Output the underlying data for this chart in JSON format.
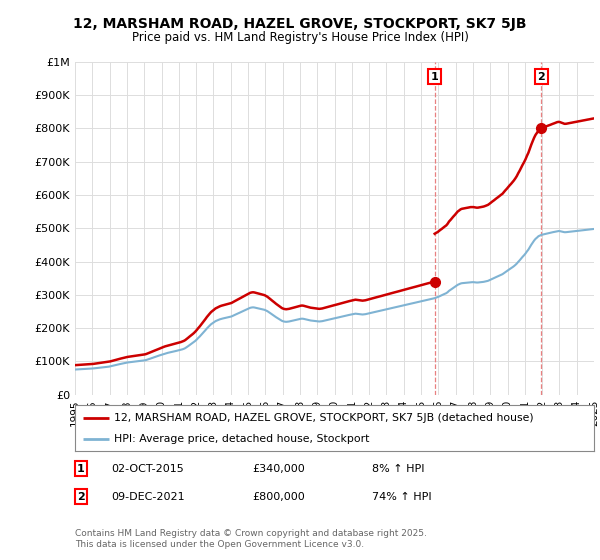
{
  "title": "12, MARSHAM ROAD, HAZEL GROVE, STOCKPORT, SK7 5JB",
  "subtitle": "Price paid vs. HM Land Registry's House Price Index (HPI)",
  "legend_label1": "12, MARSHAM ROAD, HAZEL GROVE, STOCKPORT, SK7 5JB (detached house)",
  "legend_label2": "HPI: Average price, detached house, Stockport",
  "annotation1_date": "02-OCT-2015",
  "annotation1_price": "£340,000",
  "annotation1_hpi": "8% ↑ HPI",
  "annotation2_date": "09-DEC-2021",
  "annotation2_price": "£800,000",
  "annotation2_hpi": "74% ↑ HPI",
  "footer": "Contains HM Land Registry data © Crown copyright and database right 2025.\nThis data is licensed under the Open Government Licence v3.0.",
  "line1_color": "#cc0000",
  "line2_color": "#7fb3d3",
  "vline_color": "#e88080",
  "background_color": "#ffffff",
  "grid_color": "#dddddd",
  "ylim": [
    0,
    1000000
  ],
  "yticks": [
    0,
    100000,
    200000,
    300000,
    400000,
    500000,
    600000,
    700000,
    800000,
    900000,
    1000000
  ],
  "ytick_labels": [
    "£0",
    "£100K",
    "£200K",
    "£300K",
    "£400K",
    "£500K",
    "£600K",
    "£700K",
    "£800K",
    "£900K",
    "£1M"
  ],
  "hpi_years": [
    1995.04,
    1995.12,
    1995.21,
    1995.29,
    1995.37,
    1995.46,
    1995.54,
    1995.62,
    1995.71,
    1995.79,
    1995.87,
    1995.96,
    1996.04,
    1996.12,
    1996.21,
    1996.29,
    1996.37,
    1996.46,
    1996.54,
    1996.62,
    1996.71,
    1996.79,
    1996.87,
    1996.96,
    1997.04,
    1997.12,
    1997.21,
    1997.29,
    1997.37,
    1997.46,
    1997.54,
    1997.62,
    1997.71,
    1997.79,
    1997.87,
    1997.96,
    1998.04,
    1998.12,
    1998.21,
    1998.29,
    1998.37,
    1998.46,
    1998.54,
    1998.62,
    1998.71,
    1998.79,
    1998.87,
    1998.96,
    1999.04,
    1999.12,
    1999.21,
    1999.29,
    1999.37,
    1999.46,
    1999.54,
    1999.62,
    1999.71,
    1999.79,
    1999.87,
    1999.96,
    2000.04,
    2000.12,
    2000.21,
    2000.29,
    2000.37,
    2000.46,
    2000.54,
    2000.62,
    2000.71,
    2000.79,
    2000.87,
    2000.96,
    2001.04,
    2001.12,
    2001.21,
    2001.29,
    2001.37,
    2001.46,
    2001.54,
    2001.62,
    2001.71,
    2001.79,
    2001.87,
    2001.96,
    2002.04,
    2002.12,
    2002.21,
    2002.29,
    2002.37,
    2002.46,
    2002.54,
    2002.62,
    2002.71,
    2002.79,
    2002.87,
    2002.96,
    2003.04,
    2003.12,
    2003.21,
    2003.29,
    2003.37,
    2003.46,
    2003.54,
    2003.62,
    2003.71,
    2003.79,
    2003.87,
    2003.96,
    2004.04,
    2004.12,
    2004.21,
    2004.29,
    2004.37,
    2004.46,
    2004.54,
    2004.62,
    2004.71,
    2004.79,
    2004.87,
    2004.96,
    2005.04,
    2005.12,
    2005.21,
    2005.29,
    2005.37,
    2005.46,
    2005.54,
    2005.62,
    2005.71,
    2005.79,
    2005.87,
    2005.96,
    2006.04,
    2006.12,
    2006.21,
    2006.29,
    2006.37,
    2006.46,
    2006.54,
    2006.62,
    2006.71,
    2006.79,
    2006.87,
    2006.96,
    2007.04,
    2007.12,
    2007.21,
    2007.29,
    2007.37,
    2007.46,
    2007.54,
    2007.62,
    2007.71,
    2007.79,
    2007.87,
    2007.96,
    2008.04,
    2008.12,
    2008.21,
    2008.29,
    2008.37,
    2008.46,
    2008.54,
    2008.62,
    2008.71,
    2008.79,
    2008.87,
    2008.96,
    2009.04,
    2009.12,
    2009.21,
    2009.29,
    2009.37,
    2009.46,
    2009.54,
    2009.62,
    2009.71,
    2009.79,
    2009.87,
    2009.96,
    2010.04,
    2010.12,
    2010.21,
    2010.29,
    2010.37,
    2010.46,
    2010.54,
    2010.62,
    2010.71,
    2010.79,
    2010.87,
    2010.96,
    2011.04,
    2011.12,
    2011.21,
    2011.29,
    2011.37,
    2011.46,
    2011.54,
    2011.62,
    2011.71,
    2011.79,
    2011.87,
    2011.96,
    2012.04,
    2012.12,
    2012.21,
    2012.29,
    2012.37,
    2012.46,
    2012.54,
    2012.62,
    2012.71,
    2012.79,
    2012.87,
    2012.96,
    2013.04,
    2013.12,
    2013.21,
    2013.29,
    2013.37,
    2013.46,
    2013.54,
    2013.62,
    2013.71,
    2013.79,
    2013.87,
    2013.96,
    2014.04,
    2014.12,
    2014.21,
    2014.29,
    2014.37,
    2014.46,
    2014.54,
    2014.62,
    2014.71,
    2014.79,
    2014.87,
    2014.96,
    2015.04,
    2015.12,
    2015.21,
    2015.29,
    2015.37,
    2015.46,
    2015.54,
    2015.62,
    2015.71,
    2015.79,
    2015.87,
    2015.96,
    2016.04,
    2016.12,
    2016.21,
    2016.29,
    2016.37,
    2016.46,
    2016.54,
    2016.62,
    2016.71,
    2016.79,
    2016.87,
    2016.96,
    2017.04,
    2017.12,
    2017.21,
    2017.29,
    2017.37,
    2017.46,
    2017.54,
    2017.62,
    2017.71,
    2017.79,
    2017.87,
    2017.96,
    2018.04,
    2018.12,
    2018.21,
    2018.29,
    2018.37,
    2018.46,
    2018.54,
    2018.62,
    2018.71,
    2018.79,
    2018.87,
    2018.96,
    2019.04,
    2019.12,
    2019.21,
    2019.29,
    2019.37,
    2019.46,
    2019.54,
    2019.62,
    2019.71,
    2019.79,
    2019.87,
    2019.96,
    2020.04,
    2020.12,
    2020.21,
    2020.29,
    2020.37,
    2020.46,
    2020.54,
    2020.62,
    2020.71,
    2020.79,
    2020.87,
    2020.96,
    2021.04,
    2021.12,
    2021.21,
    2021.29,
    2021.37,
    2021.46,
    2021.54,
    2021.62,
    2021.71,
    2021.79,
    2021.87,
    2021.96,
    2022.04,
    2022.12,
    2022.21,
    2022.29,
    2022.37,
    2022.46,
    2022.54,
    2022.62,
    2022.71,
    2022.79,
    2022.87,
    2022.96,
    2023.04,
    2023.12,
    2023.21,
    2023.29,
    2023.37,
    2023.46,
    2023.54,
    2023.62,
    2023.71,
    2023.79,
    2023.87,
    2023.96,
    2024.04,
    2024.12,
    2024.21,
    2024.29,
    2024.37,
    2024.46,
    2024.54,
    2024.62,
    2024.71,
    2024.79,
    2024.87,
    2024.96
  ],
  "hpi_values": [
    76000,
    76200,
    76500,
    76800,
    77000,
    77200,
    77500,
    77800,
    78000,
    78200,
    78500,
    78800,
    79000,
    79500,
    80000,
    80500,
    81000,
    81500,
    82000,
    82500,
    83000,
    83500,
    84000,
    84500,
    85500,
    86500,
    87500,
    88500,
    89500,
    90500,
    91500,
    92500,
    93500,
    94500,
    95500,
    96500,
    97000,
    97500,
    98000,
    98500,
    99000,
    99500,
    100000,
    100500,
    101000,
    101500,
    102000,
    102500,
    103500,
    104500,
    106000,
    107500,
    109000,
    110500,
    112000,
    113500,
    115000,
    116500,
    118000,
    119500,
    121000,
    122500,
    124000,
    125000,
    126000,
    127000,
    128000,
    129000,
    130000,
    131000,
    132000,
    133000,
    134000,
    135000,
    136500,
    138000,
    140000,
    143000,
    146000,
    149000,
    152000,
    155000,
    158000,
    162000,
    166000,
    170500,
    175000,
    179500,
    184000,
    189000,
    194000,
    199000,
    204000,
    208000,
    212000,
    215000,
    218000,
    221000,
    223000,
    225000,
    226500,
    228000,
    229000,
    230000,
    231000,
    232000,
    233000,
    234000,
    235000,
    237000,
    239000,
    241000,
    243000,
    245000,
    247000,
    249000,
    251000,
    253000,
    255000,
    257000,
    259000,
    261000,
    262000,
    262500,
    262000,
    261000,
    260000,
    259000,
    258000,
    257000,
    256000,
    255000,
    253000,
    251000,
    248000,
    245000,
    242000,
    239000,
    236000,
    233000,
    230000,
    227000,
    224500,
    222000,
    220500,
    219500,
    219000,
    219500,
    220000,
    221000,
    222000,
    223000,
    224000,
    225000,
    226000,
    227000,
    228000,
    228500,
    228000,
    227000,
    226000,
    225000,
    224000,
    223000,
    222500,
    222000,
    221500,
    221000,
    220500,
    220000,
    220500,
    221000,
    222000,
    223000,
    224000,
    225000,
    226000,
    227000,
    228000,
    229000,
    230000,
    231000,
    232000,
    233000,
    234000,
    235000,
    236000,
    237000,
    238000,
    239000,
    240000,
    241000,
    242000,
    243000,
    243500,
    243000,
    242500,
    242000,
    241500,
    241000,
    241500,
    242000,
    243000,
    244000,
    245000,
    246000,
    247000,
    248000,
    249000,
    250000,
    251000,
    252000,
    253000,
    254000,
    255000,
    256000,
    257000,
    258000,
    259000,
    260000,
    261000,
    262000,
    263000,
    264000,
    265000,
    266000,
    267000,
    268000,
    269000,
    270000,
    271000,
    272000,
    273000,
    274000,
    275000,
    276000,
    277000,
    278000,
    279000,
    280000,
    281000,
    282000,
    283000,
    284000,
    285000,
    286000,
    287000,
    288000,
    289000,
    290000,
    291500,
    293000,
    295000,
    297000,
    299000,
    301000,
    303000,
    305000,
    308000,
    312000,
    315000,
    318000,
    321000,
    324000,
    327000,
    330000,
    332000,
    334000,
    335000,
    335500,
    336000,
    336500,
    337000,
    337500,
    338000,
    338000,
    338000,
    337500,
    337000,
    337000,
    337500,
    338000,
    338500,
    339000,
    340000,
    341000,
    342000,
    344000,
    346000,
    348000,
    350000,
    352000,
    354000,
    356000,
    358000,
    360000,
    362000,
    365000,
    368000,
    371000,
    374000,
    377000,
    380000,
    383000,
    386000,
    390000,
    394000,
    399000,
    404000,
    409000,
    414000,
    419000,
    424000,
    430000,
    436000,
    443000,
    450000,
    457000,
    463000,
    468000,
    472000,
    476000,
    478000,
    480000,
    481000,
    482000,
    483000,
    484000,
    485000,
    486000,
    487000,
    488000,
    489000,
    490000,
    491000,
    491500,
    491000,
    490000,
    489000,
    488000,
    488000,
    488500,
    489000,
    489500,
    490000,
    490500,
    491000,
    491500,
    492000,
    492500,
    493000,
    493500,
    494000,
    494500,
    495000,
    495500,
    496000,
    496500,
    497000,
    497500
  ],
  "sale1_year": 2015.79,
  "sale1_price": 340000,
  "sale2_year": 2021.96,
  "sale2_price": 800000,
  "xtick_years": [
    1995,
    1996,
    1997,
    1998,
    1999,
    2000,
    2001,
    2002,
    2003,
    2004,
    2005,
    2006,
    2007,
    2008,
    2009,
    2010,
    2011,
    2012,
    2013,
    2014,
    2015,
    2016,
    2017,
    2018,
    2019,
    2020,
    2021,
    2022,
    2023,
    2024,
    2025
  ]
}
